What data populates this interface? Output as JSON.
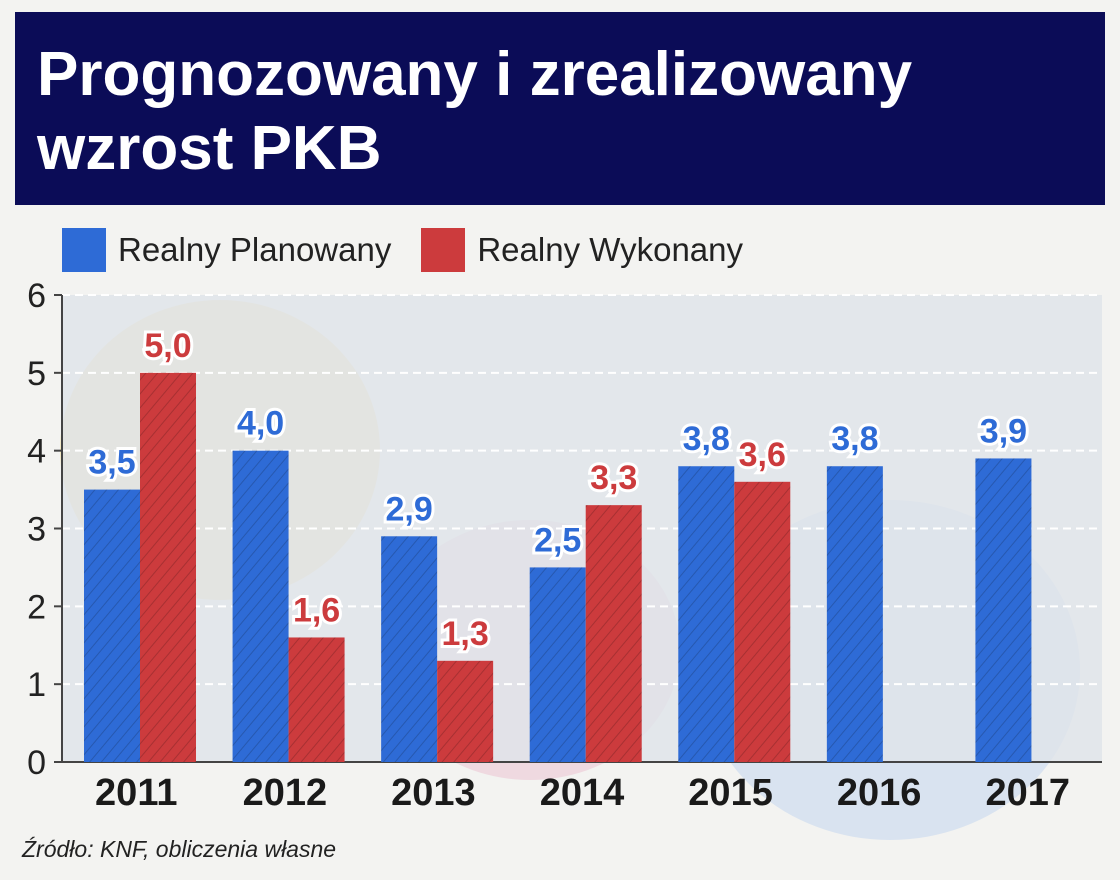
{
  "title": "Prognozowany i zrealizowany wzrost PKB",
  "source": "Źródło: KNF, obliczenia własne",
  "colors": {
    "planned": "#2e6bd6",
    "actual": "#cc3b3d",
    "title_bg": "#0b0c57",
    "plot_bg": "#dfe3ea"
  },
  "chart_data": {
    "type": "bar",
    "categories": [
      "2011",
      "2012",
      "2013",
      "2014",
      "2015",
      "2016",
      "2017"
    ],
    "series": [
      {
        "name": "Realny Planowany",
        "values": [
          3.5,
          4.0,
          2.9,
          2.5,
          3.8,
          3.8,
          3.9
        ],
        "labels": [
          "3,5",
          "4,0",
          "2,9",
          "2,5",
          "3,8",
          "3,8",
          "3,9"
        ]
      },
      {
        "name": "Realny Wykonany",
        "values": [
          5.0,
          1.6,
          1.3,
          3.3,
          3.6,
          null,
          null
        ],
        "labels": [
          "5,0",
          "1,6",
          "1,3",
          "3,3",
          "3,6",
          "",
          ""
        ]
      }
    ],
    "ylim": [
      0,
      6
    ],
    "yticks": [
      "0",
      "1",
      "2",
      "3",
      "4",
      "5",
      "6"
    ],
    "grid": true,
    "legend": "top-left"
  }
}
